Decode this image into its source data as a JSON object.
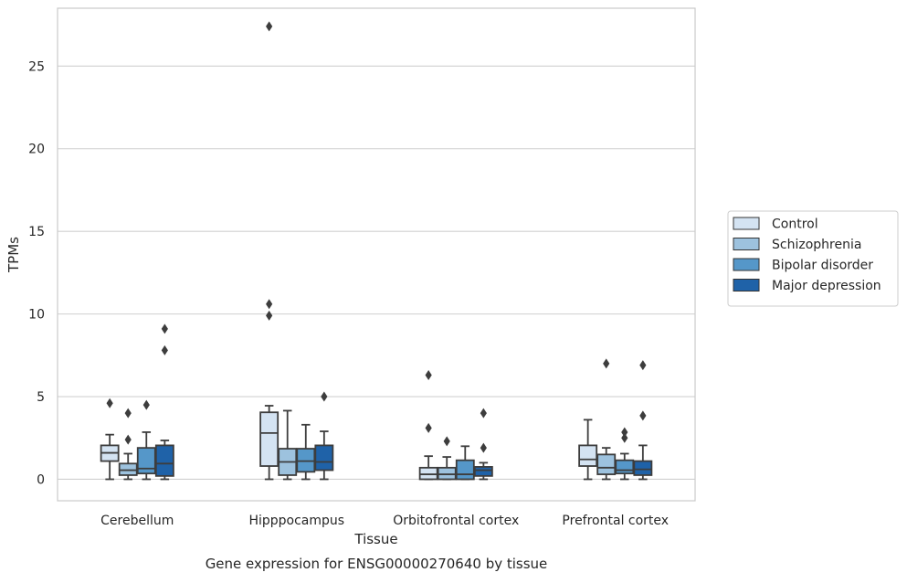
{
  "chart_data": {
    "type": "boxplot",
    "title": "",
    "caption": "Gene expression for ENSG00000270640 by tissue",
    "xlabel": "Tissue",
    "ylabel": "TPMs",
    "ylim": [
      -1.3,
      28.5
    ],
    "yticks": [
      0,
      5,
      10,
      15,
      20,
      25
    ],
    "grid": "horizontal",
    "legend_position": "right",
    "categories": [
      "Cerebellum",
      "Hipppocampus",
      "Orbitofrontal cortex",
      "Prefrontal cortex"
    ],
    "series": [
      {
        "name": "Control",
        "color": "#d4e3f2",
        "boxes": [
          {
            "whislo": 0.0,
            "q1": 1.1,
            "median": 1.6,
            "q3": 2.05,
            "whishi": 2.7,
            "fliers": [
              4.6
            ]
          },
          {
            "whislo": 0.0,
            "q1": 0.8,
            "median": 2.8,
            "q3": 4.05,
            "whishi": 4.45,
            "fliers": [
              9.9,
              10.6,
              27.4
            ]
          },
          {
            "whislo": 0.0,
            "q1": 0.0,
            "median": 0.3,
            "q3": 0.7,
            "whishi": 1.4,
            "fliers": [
              3.1,
              6.3
            ]
          },
          {
            "whislo": 0.0,
            "q1": 0.8,
            "median": 1.2,
            "q3": 2.05,
            "whishi": 3.6,
            "fliers": []
          }
        ]
      },
      {
        "name": "Schizophrenia",
        "color": "#9dc2de",
        "boxes": [
          {
            "whislo": 0.0,
            "q1": 0.25,
            "median": 0.55,
            "q3": 0.95,
            "whishi": 1.55,
            "fliers": [
              2.4,
              4.0
            ]
          },
          {
            "whislo": 0.0,
            "q1": 0.25,
            "median": 1.05,
            "q3": 1.85,
            "whishi": 4.15,
            "fliers": []
          },
          {
            "whislo": 0.0,
            "q1": 0.0,
            "median": 0.3,
            "q3": 0.7,
            "whishi": 1.35,
            "fliers": [
              2.3
            ]
          },
          {
            "whislo": 0.0,
            "q1": 0.3,
            "median": 0.7,
            "q3": 1.5,
            "whishi": 1.9,
            "fliers": [
              7.0
            ]
          }
        ]
      },
      {
        "name": "Bipolar disorder",
        "color": "#5597c9",
        "boxes": [
          {
            "whislo": 0.0,
            "q1": 0.35,
            "median": 0.65,
            "q3": 1.9,
            "whishi": 2.85,
            "fliers": [
              4.5
            ]
          },
          {
            "whislo": 0.0,
            "q1": 0.45,
            "median": 1.1,
            "q3": 1.85,
            "whishi": 3.3,
            "fliers": []
          },
          {
            "whislo": 0.0,
            "q1": 0.0,
            "median": 0.3,
            "q3": 1.15,
            "whishi": 2.0,
            "fliers": []
          },
          {
            "whislo": 0.0,
            "q1": 0.35,
            "median": 0.55,
            "q3": 1.15,
            "whishi": 1.55,
            "fliers": [
              2.5,
              2.85
            ]
          }
        ]
      },
      {
        "name": "Major depression",
        "color": "#1f62a8",
        "boxes": [
          {
            "whislo": 0.0,
            "q1": 0.2,
            "median": 0.95,
            "q3": 2.05,
            "whishi": 2.35,
            "fliers": [
              7.8,
              9.1
            ]
          },
          {
            "whislo": 0.0,
            "q1": 0.55,
            "median": 1.05,
            "q3": 2.05,
            "whishi": 2.9,
            "fliers": [
              5.0
            ]
          },
          {
            "whislo": 0.0,
            "q1": 0.2,
            "median": 0.55,
            "q3": 0.75,
            "whishi": 1.0,
            "fliers": [
              1.9,
              4.0
            ]
          },
          {
            "whislo": 0.0,
            "q1": 0.25,
            "median": 0.6,
            "q3": 1.1,
            "whishi": 2.05,
            "fliers": [
              3.85,
              6.9
            ]
          }
        ]
      }
    ]
  }
}
